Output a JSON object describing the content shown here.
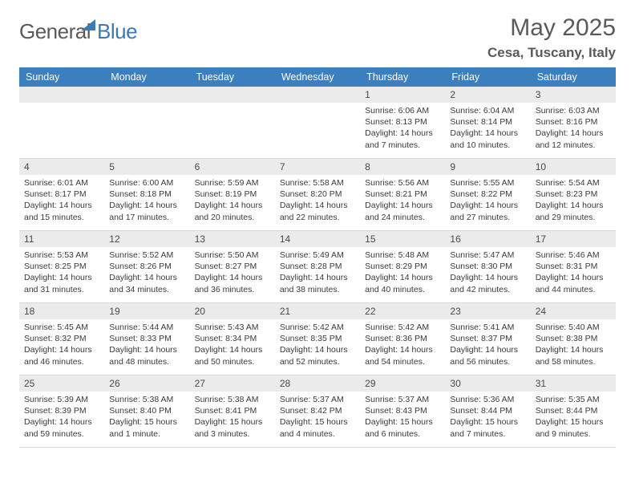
{
  "logo": {
    "general": "General",
    "blue": "Blue"
  },
  "title": "May 2025",
  "subtitle": "Cesa, Tuscany, Italy",
  "colors": {
    "header_bg": "#3c7fbf",
    "header_text": "#ffffff",
    "daynum_bg": "#ebebeb",
    "text": "#3a3a3a",
    "title": "#5a5a5a",
    "logo_blue": "#3c79b5",
    "border": "#d9d9d9",
    "page_bg": "#ffffff"
  },
  "typography": {
    "title_fontsize": 30,
    "subtitle_fontsize": 17,
    "dayheader_fontsize": 12.5,
    "daynum_fontsize": 12,
    "body_fontsize": 10.5
  },
  "day_headers": [
    "Sunday",
    "Monday",
    "Tuesday",
    "Wednesday",
    "Thursday",
    "Friday",
    "Saturday"
  ],
  "weeks": [
    [
      {
        "n": "",
        "sunrise": "",
        "sunset": "",
        "daylight": ""
      },
      {
        "n": "",
        "sunrise": "",
        "sunset": "",
        "daylight": ""
      },
      {
        "n": "",
        "sunrise": "",
        "sunset": "",
        "daylight": ""
      },
      {
        "n": "",
        "sunrise": "",
        "sunset": "",
        "daylight": ""
      },
      {
        "n": "1",
        "sunrise": "Sunrise: 6:06 AM",
        "sunset": "Sunset: 8:13 PM",
        "daylight": "Daylight: 14 hours and 7 minutes."
      },
      {
        "n": "2",
        "sunrise": "Sunrise: 6:04 AM",
        "sunset": "Sunset: 8:14 PM",
        "daylight": "Daylight: 14 hours and 10 minutes."
      },
      {
        "n": "3",
        "sunrise": "Sunrise: 6:03 AM",
        "sunset": "Sunset: 8:16 PM",
        "daylight": "Daylight: 14 hours and 12 minutes."
      }
    ],
    [
      {
        "n": "4",
        "sunrise": "Sunrise: 6:01 AM",
        "sunset": "Sunset: 8:17 PM",
        "daylight": "Daylight: 14 hours and 15 minutes."
      },
      {
        "n": "5",
        "sunrise": "Sunrise: 6:00 AM",
        "sunset": "Sunset: 8:18 PM",
        "daylight": "Daylight: 14 hours and 17 minutes."
      },
      {
        "n": "6",
        "sunrise": "Sunrise: 5:59 AM",
        "sunset": "Sunset: 8:19 PM",
        "daylight": "Daylight: 14 hours and 20 minutes."
      },
      {
        "n": "7",
        "sunrise": "Sunrise: 5:58 AM",
        "sunset": "Sunset: 8:20 PM",
        "daylight": "Daylight: 14 hours and 22 minutes."
      },
      {
        "n": "8",
        "sunrise": "Sunrise: 5:56 AM",
        "sunset": "Sunset: 8:21 PM",
        "daylight": "Daylight: 14 hours and 24 minutes."
      },
      {
        "n": "9",
        "sunrise": "Sunrise: 5:55 AM",
        "sunset": "Sunset: 8:22 PM",
        "daylight": "Daylight: 14 hours and 27 minutes."
      },
      {
        "n": "10",
        "sunrise": "Sunrise: 5:54 AM",
        "sunset": "Sunset: 8:23 PM",
        "daylight": "Daylight: 14 hours and 29 minutes."
      }
    ],
    [
      {
        "n": "11",
        "sunrise": "Sunrise: 5:53 AM",
        "sunset": "Sunset: 8:25 PM",
        "daylight": "Daylight: 14 hours and 31 minutes."
      },
      {
        "n": "12",
        "sunrise": "Sunrise: 5:52 AM",
        "sunset": "Sunset: 8:26 PM",
        "daylight": "Daylight: 14 hours and 34 minutes."
      },
      {
        "n": "13",
        "sunrise": "Sunrise: 5:50 AM",
        "sunset": "Sunset: 8:27 PM",
        "daylight": "Daylight: 14 hours and 36 minutes."
      },
      {
        "n": "14",
        "sunrise": "Sunrise: 5:49 AM",
        "sunset": "Sunset: 8:28 PM",
        "daylight": "Daylight: 14 hours and 38 minutes."
      },
      {
        "n": "15",
        "sunrise": "Sunrise: 5:48 AM",
        "sunset": "Sunset: 8:29 PM",
        "daylight": "Daylight: 14 hours and 40 minutes."
      },
      {
        "n": "16",
        "sunrise": "Sunrise: 5:47 AM",
        "sunset": "Sunset: 8:30 PM",
        "daylight": "Daylight: 14 hours and 42 minutes."
      },
      {
        "n": "17",
        "sunrise": "Sunrise: 5:46 AM",
        "sunset": "Sunset: 8:31 PM",
        "daylight": "Daylight: 14 hours and 44 minutes."
      }
    ],
    [
      {
        "n": "18",
        "sunrise": "Sunrise: 5:45 AM",
        "sunset": "Sunset: 8:32 PM",
        "daylight": "Daylight: 14 hours and 46 minutes."
      },
      {
        "n": "19",
        "sunrise": "Sunrise: 5:44 AM",
        "sunset": "Sunset: 8:33 PM",
        "daylight": "Daylight: 14 hours and 48 minutes."
      },
      {
        "n": "20",
        "sunrise": "Sunrise: 5:43 AM",
        "sunset": "Sunset: 8:34 PM",
        "daylight": "Daylight: 14 hours and 50 minutes."
      },
      {
        "n": "21",
        "sunrise": "Sunrise: 5:42 AM",
        "sunset": "Sunset: 8:35 PM",
        "daylight": "Daylight: 14 hours and 52 minutes."
      },
      {
        "n": "22",
        "sunrise": "Sunrise: 5:42 AM",
        "sunset": "Sunset: 8:36 PM",
        "daylight": "Daylight: 14 hours and 54 minutes."
      },
      {
        "n": "23",
        "sunrise": "Sunrise: 5:41 AM",
        "sunset": "Sunset: 8:37 PM",
        "daylight": "Daylight: 14 hours and 56 minutes."
      },
      {
        "n": "24",
        "sunrise": "Sunrise: 5:40 AM",
        "sunset": "Sunset: 8:38 PM",
        "daylight": "Daylight: 14 hours and 58 minutes."
      }
    ],
    [
      {
        "n": "25",
        "sunrise": "Sunrise: 5:39 AM",
        "sunset": "Sunset: 8:39 PM",
        "daylight": "Daylight: 14 hours and 59 minutes."
      },
      {
        "n": "26",
        "sunrise": "Sunrise: 5:38 AM",
        "sunset": "Sunset: 8:40 PM",
        "daylight": "Daylight: 15 hours and 1 minute."
      },
      {
        "n": "27",
        "sunrise": "Sunrise: 5:38 AM",
        "sunset": "Sunset: 8:41 PM",
        "daylight": "Daylight: 15 hours and 3 minutes."
      },
      {
        "n": "28",
        "sunrise": "Sunrise: 5:37 AM",
        "sunset": "Sunset: 8:42 PM",
        "daylight": "Daylight: 15 hours and 4 minutes."
      },
      {
        "n": "29",
        "sunrise": "Sunrise: 5:37 AM",
        "sunset": "Sunset: 8:43 PM",
        "daylight": "Daylight: 15 hours and 6 minutes."
      },
      {
        "n": "30",
        "sunrise": "Sunrise: 5:36 AM",
        "sunset": "Sunset: 8:44 PM",
        "daylight": "Daylight: 15 hours and 7 minutes."
      },
      {
        "n": "31",
        "sunrise": "Sunrise: 5:35 AM",
        "sunset": "Sunset: 8:44 PM",
        "daylight": "Daylight: 15 hours and 9 minutes."
      }
    ]
  ]
}
